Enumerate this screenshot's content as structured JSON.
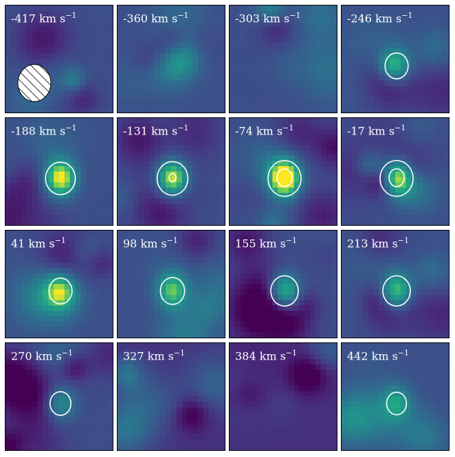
{
  "figure": {
    "panels": [
      {
        "velocity": "-417",
        "unit": "km s",
        "exponent": "−1",
        "peak": 0.05,
        "contours": 0,
        "beam": true
      },
      {
        "velocity": "-360",
        "unit": "km s",
        "exponent": "−1",
        "peak": 0.05,
        "contours": 0,
        "beam": false
      },
      {
        "velocity": "-303",
        "unit": "km s",
        "exponent": "−1",
        "peak": 0.05,
        "contours": 0,
        "beam": false
      },
      {
        "velocity": "-246",
        "unit": "km s",
        "exponent": "−1",
        "peak": 0.55,
        "contours": 1,
        "beam": false
      },
      {
        "velocity": "-188",
        "unit": "km s",
        "exponent": "−1",
        "peak": 0.85,
        "contours": 1,
        "beam": false
      },
      {
        "velocity": "-131",
        "unit": "km s",
        "exponent": "−1",
        "peak": 0.9,
        "contours": 2,
        "beam": false
      },
      {
        "velocity": "-74",
        "unit": "km s",
        "exponent": "−1",
        "peak": 1.0,
        "contours": 2,
        "beam": false
      },
      {
        "velocity": "-17",
        "unit": "km s",
        "exponent": "−1",
        "peak": 1.0,
        "contours": 2,
        "beam": false
      },
      {
        "velocity": "41",
        "unit": "km s",
        "exponent": "−1",
        "peak": 0.55,
        "contours": 1,
        "beam": false
      },
      {
        "velocity": "98",
        "unit": "km s",
        "exponent": "−1",
        "peak": 0.6,
        "contours": 1,
        "beam": false
      },
      {
        "velocity": "155",
        "unit": "km s",
        "exponent": "−1",
        "peak": 0.75,
        "contours": 1,
        "beam": false
      },
      {
        "velocity": "213",
        "unit": "km s",
        "exponent": "−1",
        "peak": 0.75,
        "contours": 1,
        "beam": false
      },
      {
        "velocity": "270",
        "unit": "km s",
        "exponent": "−1",
        "peak": 0.45,
        "contours": 1,
        "beam": false
      },
      {
        "velocity": "327",
        "unit": "km s",
        "exponent": "−1",
        "peak": 0.05,
        "contours": 0,
        "beam": false
      },
      {
        "velocity": "384",
        "unit": "km s",
        "exponent": "−1",
        "peak": 0.05,
        "contours": 0,
        "beam": false
      },
      {
        "velocity": "442",
        "unit": "km s",
        "exponent": "−1",
        "peak": 0.4,
        "contours": 1,
        "beam": false
      }
    ],
    "colormap": "viridis",
    "contour_color": "#ffffff"
  }
}
